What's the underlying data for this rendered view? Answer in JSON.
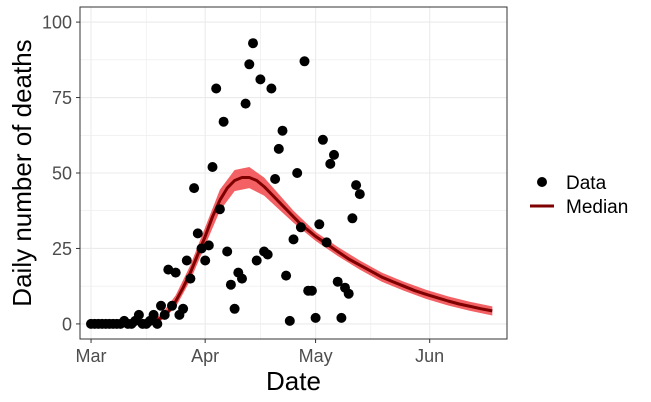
{
  "chart_data": {
    "type": "scatter",
    "xlabel": "Date",
    "ylabel": "Daily number of deaths",
    "x_domain": [
      "2020-02-27",
      "2020-06-22"
    ],
    "ylim": [
      -5,
      105
    ],
    "x_ticks": [
      {
        "date": "2020-03-01",
        "label": "Mar"
      },
      {
        "date": "2020-04-01",
        "label": "Apr"
      },
      {
        "date": "2020-05-01",
        "label": "May"
      },
      {
        "date": "2020-06-01",
        "label": "Jun"
      }
    ],
    "y_ticks": [
      0,
      25,
      50,
      75,
      100
    ],
    "grid": true,
    "legend_position": "right",
    "colors": {
      "data": "#000000",
      "median": "#7f0000",
      "band": "#f2595c",
      "grid": "#ebebeb",
      "panel_border": "#333333",
      "tick_text": "#4d4d4d"
    },
    "series": [
      {
        "name": "Data",
        "kind": "points",
        "points": [
          [
            "2020-03-01",
            0
          ],
          [
            "2020-03-02",
            0
          ],
          [
            "2020-03-03",
            0
          ],
          [
            "2020-03-04",
            0
          ],
          [
            "2020-03-05",
            0
          ],
          [
            "2020-03-06",
            0
          ],
          [
            "2020-03-07",
            0
          ],
          [
            "2020-03-08",
            0
          ],
          [
            "2020-03-09",
            0
          ],
          [
            "2020-03-10",
            1
          ],
          [
            "2020-03-11",
            0
          ],
          [
            "2020-03-12",
            0
          ],
          [
            "2020-03-13",
            1
          ],
          [
            "2020-03-14",
            3
          ],
          [
            "2020-03-15",
            0
          ],
          [
            "2020-03-16",
            0
          ],
          [
            "2020-03-17",
            1
          ],
          [
            "2020-03-18",
            3
          ],
          [
            "2020-03-19",
            0
          ],
          [
            "2020-03-20",
            6
          ],
          [
            "2020-03-21",
            3
          ],
          [
            "2020-03-22",
            18
          ],
          [
            "2020-03-23",
            6
          ],
          [
            "2020-03-24",
            17
          ],
          [
            "2020-03-25",
            3
          ],
          [
            "2020-03-26",
            5
          ],
          [
            "2020-03-27",
            21
          ],
          [
            "2020-03-28",
            15
          ],
          [
            "2020-03-29",
            45
          ],
          [
            "2020-03-30",
            30
          ],
          [
            "2020-03-31",
            25
          ],
          [
            "2020-04-01",
            21
          ],
          [
            "2020-04-02",
            26
          ],
          [
            "2020-04-03",
            52
          ],
          [
            "2020-04-04",
            78
          ],
          [
            "2020-04-05",
            38
          ],
          [
            "2020-04-06",
            67
          ],
          [
            "2020-04-07",
            24
          ],
          [
            "2020-04-08",
            13
          ],
          [
            "2020-04-09",
            5
          ],
          [
            "2020-04-10",
            17
          ],
          [
            "2020-04-11",
            15
          ],
          [
            "2020-04-12",
            73
          ],
          [
            "2020-04-13",
            86
          ],
          [
            "2020-04-14",
            93
          ],
          [
            "2020-04-15",
            21
          ],
          [
            "2020-04-16",
            81
          ],
          [
            "2020-04-17",
            24
          ],
          [
            "2020-04-18",
            23
          ],
          [
            "2020-04-19",
            78
          ],
          [
            "2020-04-20",
            48
          ],
          [
            "2020-04-21",
            58
          ],
          [
            "2020-04-22",
            64
          ],
          [
            "2020-04-23",
            16
          ],
          [
            "2020-04-24",
            1
          ],
          [
            "2020-04-25",
            28
          ],
          [
            "2020-04-26",
            50
          ],
          [
            "2020-04-27",
            32
          ],
          [
            "2020-04-28",
            87
          ],
          [
            "2020-04-29",
            11
          ],
          [
            "2020-04-30",
            11
          ],
          [
            "2020-05-01",
            2
          ],
          [
            "2020-05-02",
            33
          ],
          [
            "2020-05-03",
            61
          ],
          [
            "2020-05-04",
            27
          ],
          [
            "2020-05-05",
            53
          ],
          [
            "2020-05-06",
            56
          ],
          [
            "2020-05-07",
            14
          ],
          [
            "2020-05-08",
            2
          ],
          [
            "2020-05-09",
            12
          ],
          [
            "2020-05-10",
            10
          ],
          [
            "2020-05-11",
            35
          ],
          [
            "2020-05-12",
            46
          ],
          [
            "2020-05-13",
            43
          ]
        ]
      },
      {
        "name": "Median",
        "kind": "line",
        "points": [
          [
            "2020-03-16",
            0.3
          ],
          [
            "2020-03-18",
            0.7
          ],
          [
            "2020-03-20",
            2
          ],
          [
            "2020-03-22",
            4
          ],
          [
            "2020-03-24",
            7.5
          ],
          [
            "2020-03-26",
            12
          ],
          [
            "2020-03-28",
            17
          ],
          [
            "2020-03-30",
            23
          ],
          [
            "2020-04-01",
            29
          ],
          [
            "2020-04-03",
            35.5
          ],
          [
            "2020-04-05",
            41
          ],
          [
            "2020-04-07",
            45
          ],
          [
            "2020-04-09",
            47.5
          ],
          [
            "2020-04-11",
            48.5
          ],
          [
            "2020-04-13",
            48.5
          ],
          [
            "2020-04-15",
            47.5
          ],
          [
            "2020-04-17",
            45.5
          ],
          [
            "2020-04-19",
            43
          ],
          [
            "2020-04-21",
            40.5
          ],
          [
            "2020-04-23",
            38
          ],
          [
            "2020-04-25",
            35.5
          ],
          [
            "2020-04-27",
            33
          ],
          [
            "2020-04-29",
            31
          ],
          [
            "2020-05-01",
            29
          ],
          [
            "2020-05-04",
            26.5
          ],
          [
            "2020-05-07",
            24
          ],
          [
            "2020-05-10",
            21.5
          ],
          [
            "2020-05-13",
            19.5
          ],
          [
            "2020-05-16",
            17.5
          ],
          [
            "2020-05-19",
            15.5
          ],
          [
            "2020-05-22",
            14
          ],
          [
            "2020-05-25",
            12.5
          ],
          [
            "2020-05-28",
            11
          ],
          [
            "2020-05-31",
            9.8
          ],
          [
            "2020-06-03",
            8.7
          ],
          [
            "2020-06-06",
            7.6
          ],
          [
            "2020-06-09",
            6.6
          ],
          [
            "2020-06-12",
            5.8
          ],
          [
            "2020-06-15",
            5
          ],
          [
            "2020-06-18",
            4.3
          ]
        ],
        "band": [
          [
            "2020-03-16",
            0,
            0.7
          ],
          [
            "2020-03-20",
            1,
            3
          ],
          [
            "2020-03-24",
            5.5,
            9.5
          ],
          [
            "2020-03-28",
            14.5,
            19.5
          ],
          [
            "2020-04-01",
            26,
            32
          ],
          [
            "2020-04-05",
            37.5,
            44.5
          ],
          [
            "2020-04-09",
            44,
            51
          ],
          [
            "2020-04-13",
            45,
            52
          ],
          [
            "2020-04-17",
            42.5,
            48.5
          ],
          [
            "2020-04-21",
            38,
            43
          ],
          [
            "2020-04-25",
            33.5,
            37.5
          ],
          [
            "2020-05-01",
            27.5,
            30.5
          ],
          [
            "2020-05-07",
            22.5,
            25.5
          ],
          [
            "2020-05-13",
            18,
            21
          ],
          [
            "2020-05-19",
            14,
            17
          ],
          [
            "2020-05-25",
            11,
            14
          ],
          [
            "2020-05-31",
            8.3,
            11.3
          ],
          [
            "2020-06-06",
            6.1,
            9.1
          ],
          [
            "2020-06-12",
            4.3,
            7.3
          ],
          [
            "2020-06-18",
            2.8,
            5.8
          ]
        ]
      }
    ],
    "legend": [
      {
        "label": "Data",
        "symbol": "point"
      },
      {
        "label": "Median",
        "symbol": "line"
      }
    ]
  }
}
